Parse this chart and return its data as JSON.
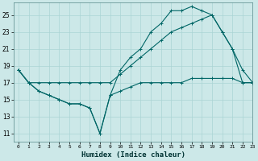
{
  "xlabel": "Humidex (Indice chaleur)",
  "bg_color": "#cce8e8",
  "grid_color": "#aad4d4",
  "line_color": "#006666",
  "xlim": [
    -0.5,
    23
  ],
  "ylim": [
    10,
    26.5
  ],
  "xticks": [
    0,
    1,
    2,
    3,
    4,
    5,
    6,
    7,
    8,
    9,
    10,
    11,
    12,
    13,
    14,
    15,
    16,
    17,
    18,
    19,
    20,
    21,
    22,
    23
  ],
  "yticks": [
    11,
    13,
    15,
    17,
    19,
    21,
    23,
    25
  ],
  "line1_x": [
    0,
    1,
    2,
    3,
    4,
    5,
    6,
    7,
    8,
    9,
    10,
    11,
    12,
    13,
    14,
    15,
    16,
    17,
    18,
    19,
    20,
    21,
    22,
    23
  ],
  "line1_y": [
    18.5,
    17,
    16,
    15.5,
    15,
    14.5,
    14.5,
    14,
    11,
    15.5,
    16,
    16.5,
    17,
    17,
    17,
    17,
    17,
    17.5,
    17.5,
    17.5,
    17.5,
    17.5,
    17,
    17
  ],
  "line2_x": [
    0,
    1,
    2,
    3,
    4,
    5,
    6,
    7,
    8,
    9,
    10,
    11,
    12,
    13,
    14,
    15,
    16,
    17,
    18,
    19,
    20,
    21,
    22,
    23
  ],
  "line2_y": [
    18.5,
    17,
    16,
    15.5,
    15,
    14.5,
    14.5,
    14,
    11,
    15.5,
    18.5,
    20,
    21,
    23,
    24,
    25.5,
    25.5,
    26,
    25.5,
    25,
    23,
    21,
    18.5,
    17
  ],
  "line3_x": [
    0,
    1,
    2,
    3,
    4,
    5,
    6,
    7,
    8,
    9,
    10,
    11,
    12,
    13,
    14,
    15,
    16,
    17,
    18,
    19,
    20,
    21,
    22,
    23
  ],
  "line3_y": [
    18.5,
    17,
    17,
    17,
    17,
    17,
    17,
    17,
    17,
    17,
    18,
    19,
    20,
    21,
    22,
    23,
    23.5,
    24,
    24.5,
    25,
    23,
    21,
    17,
    17
  ]
}
